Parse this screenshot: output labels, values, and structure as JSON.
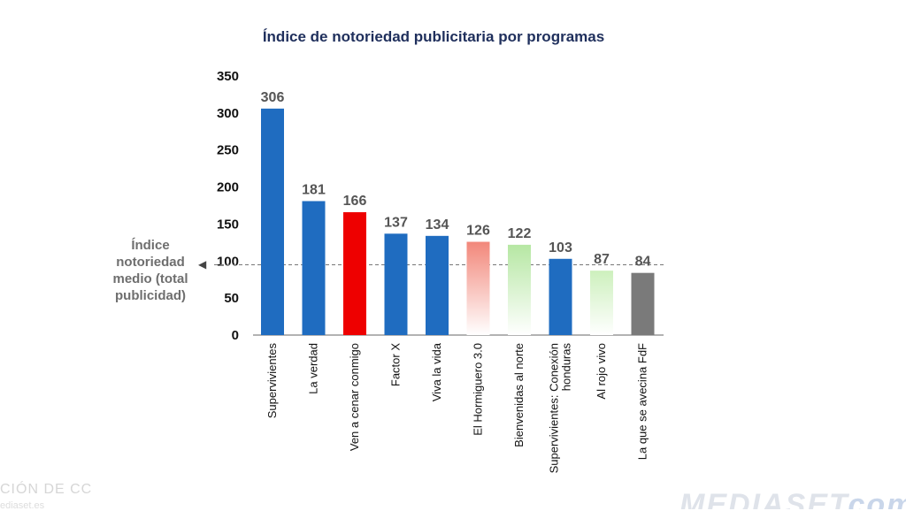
{
  "chart_data": {
    "type": "bar",
    "title": "Índice de notoriedad publicitaria por programas",
    "categories": [
      "Supervivientes",
      "La verdad",
      "Ven a cenar conmigo",
      "Factor X",
      "Viva la vida",
      "El Hormiguero 3.0",
      "Bienvenidas al norte",
      "Supervivientes: Conexión honduras",
      "Al rojo vivo",
      "La que se avecina FdF"
    ],
    "values": [
      306,
      181,
      166,
      137,
      134,
      126,
      122,
      103,
      87,
      84
    ],
    "colors": [
      "#1f6cc0",
      "#1f6cc0",
      "#ee0000",
      "#1f6cc0",
      "#1f6cc0",
      "#f2877a",
      "#b6e7a3",
      "#1f6cc0",
      "#cdf0bd",
      "#7a7a7a"
    ],
    "gradient_bars": [
      false,
      false,
      false,
      false,
      false,
      true,
      true,
      false,
      true,
      false
    ],
    "ylim": [
      0,
      350
    ],
    "yticks": [
      0,
      50,
      100,
      150,
      200,
      250,
      300,
      350
    ],
    "reference_line": {
      "value": 95,
      "label": "Índice notoriedad medio (total publicidad)"
    },
    "grid": false,
    "legend": "none"
  },
  "footer": {
    "left_text": "CIÓN DE CC",
    "left_subtext": "ediaset.es",
    "logo_main": "MEDIASET",
    "logo_suffix": "com"
  }
}
